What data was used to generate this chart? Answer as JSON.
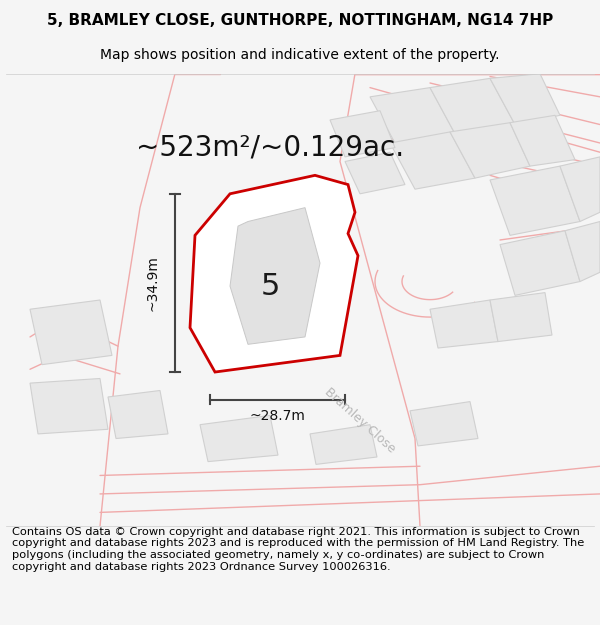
{
  "title_line1": "5, BRAMLEY CLOSE, GUNTHORPE, NOTTINGHAM, NG14 7HP",
  "title_line2": "Map shows position and indicative extent of the property.",
  "area_text": "~523m²/~0.129ac.",
  "dim_height": "~34.9m",
  "dim_width": "~28.7m",
  "plot_number": "5",
  "road_label": "Bramley Close",
  "footer_text": "Contains OS data © Crown copyright and database right 2021. This information is subject to Crown copyright and database rights 2023 and is reproduced with the permission of HM Land Registry. The polygons (including the associated geometry, namely x, y co-ordinates) are subject to Crown copyright and database rights 2023 Ordnance Survey 100026316.",
  "bg_color": "#f5f5f5",
  "map_bg": "#ffffff",
  "plot_fill": "#ffffff",
  "plot_edge": "#cc0000",
  "road_line_color": "#f0aaaa",
  "building_fill": "#e8e8e8",
  "building_edge": "#d0d0d0",
  "dim_line_color": "#444444",
  "title_fontsize": 11,
  "subtitle_fontsize": 10,
  "area_fontsize": 20,
  "dim_fontsize": 10,
  "plot_label_fontsize": 22,
  "footer_fontsize": 8.2,
  "road_label_color": "#b8b8b8"
}
